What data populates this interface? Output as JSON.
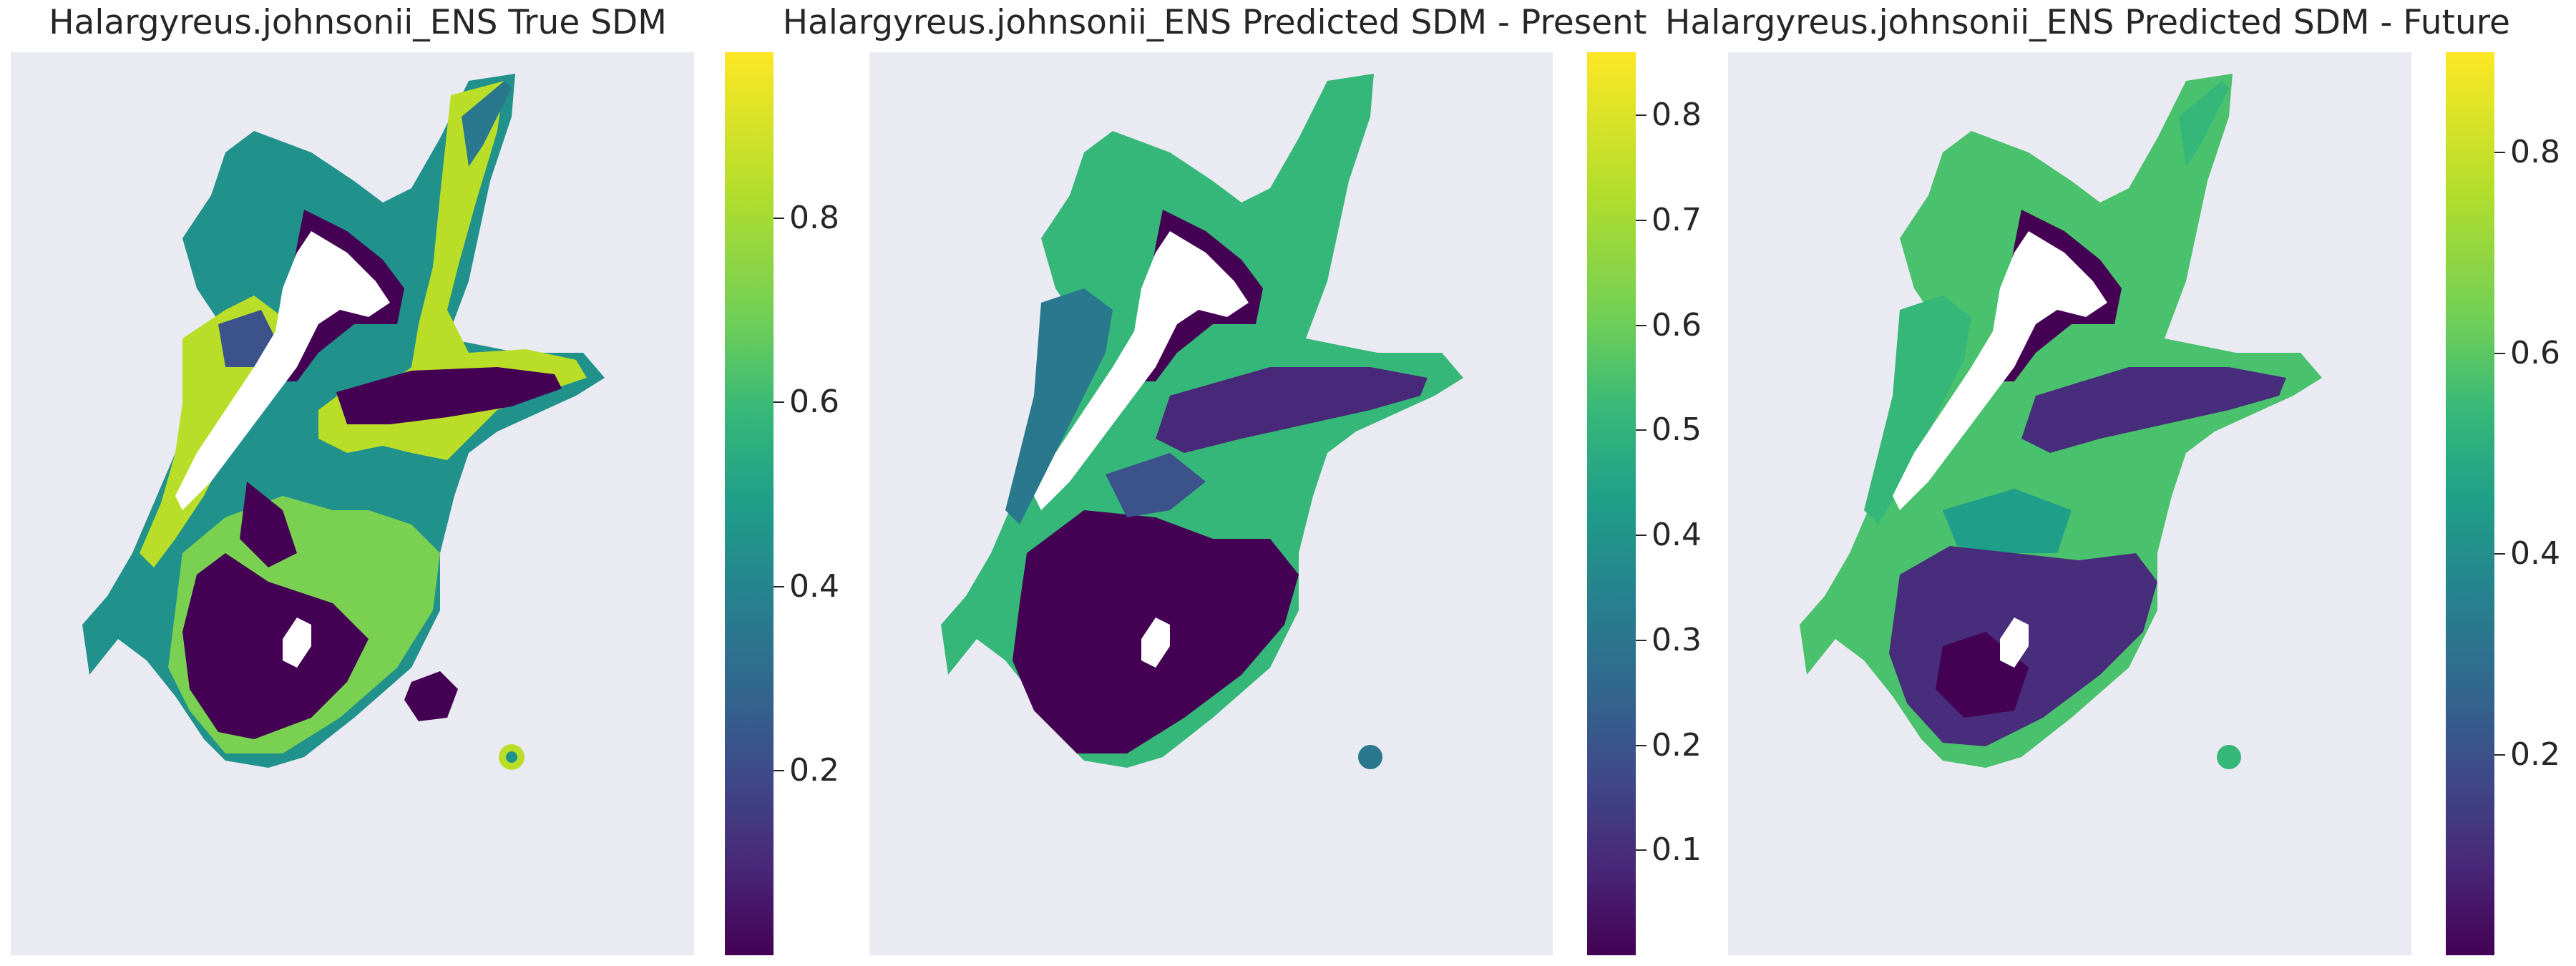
{
  "chart_data": [
    {
      "type": "heatmap",
      "title": "Halargyreus.johnsonii_ENS True SDM",
      "xlabel": "",
      "ylabel": "",
      "grid": false,
      "colormap": "viridis",
      "colorbar": {
        "range": [
          0.0,
          0.98
        ],
        "ticks": [
          0.2,
          0.4,
          0.6,
          0.8
        ],
        "tick_labels": [
          "0.2",
          "0.4",
          "0.6",
          "0.8"
        ]
      }
    },
    {
      "type": "heatmap",
      "title": "Halargyreus.johnsonii_ENS Predicted SDM - Present",
      "xlabel": "",
      "ylabel": "",
      "grid": false,
      "colormap": "viridis",
      "colorbar": {
        "range": [
          0.0,
          0.86
        ],
        "ticks": [
          0.1,
          0.2,
          0.3,
          0.4,
          0.5,
          0.6,
          0.7,
          0.8
        ],
        "tick_labels": [
          "0.1",
          "0.2",
          "0.3",
          "0.4",
          "0.5",
          "0.6",
          "0.7",
          "0.8"
        ]
      }
    },
    {
      "type": "heatmap",
      "title": "Halargyreus.johnsonii_ENS Predicted SDM - Future",
      "xlabel": "",
      "ylabel": "",
      "grid": false,
      "colormap": "viridis",
      "colorbar": {
        "range": [
          0.0,
          0.9
        ],
        "ticks": [
          0.2,
          0.4,
          0.6,
          0.8
        ],
        "tick_labels": [
          "0.2",
          "0.4",
          "0.6",
          "0.8"
        ]
      }
    }
  ],
  "colors": {
    "background": "#eaeaf2",
    "viridis_low": "#440154",
    "viridis_mid": "#21918c",
    "viridis_high": "#fde725",
    "land": "#ffffff"
  }
}
